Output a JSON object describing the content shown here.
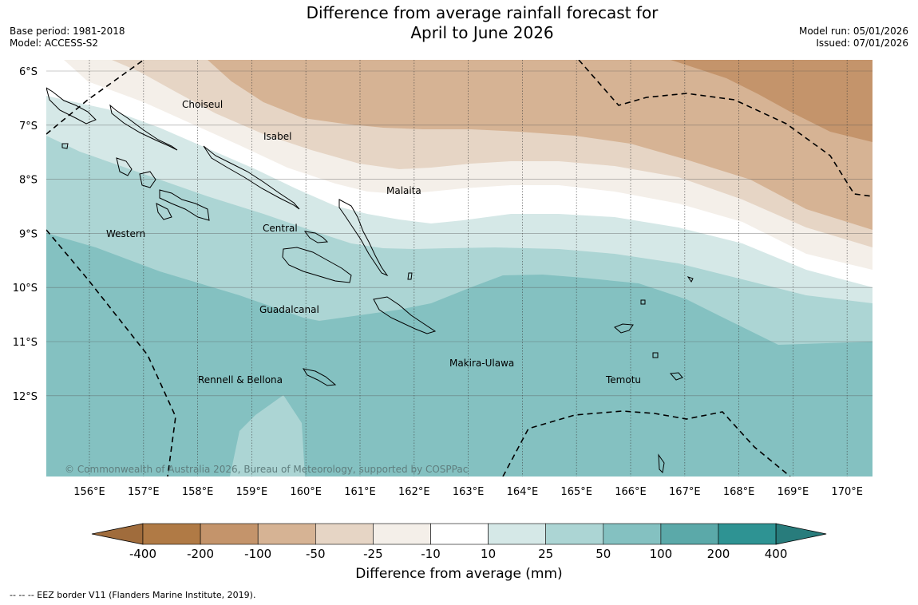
{
  "title": {
    "line1": "Difference from average rainfall forecast for",
    "line2": "April to June 2026"
  },
  "meta": {
    "base_period": "Base period: 1981-2018",
    "model": "Model: ACCESS-S2",
    "model_run": "Model run: 05/01/2026",
    "issued": "Issued: 07/01/2026"
  },
  "map": {
    "lon_ticks": [
      "156°E",
      "157°E",
      "158°E",
      "159°E",
      "160°E",
      "161°E",
      "162°E",
      "163°E",
      "164°E",
      "165°E",
      "166°E",
      "167°E",
      "168°E",
      "169°E",
      "170°E"
    ],
    "lat_ticks": [
      "6°S",
      "7°S",
      "8°S",
      "9°S",
      "10°S",
      "11°S",
      "12°S"
    ],
    "provinces": [
      {
        "name": "Choiseul"
      },
      {
        "name": "Isabel"
      },
      {
        "name": "Malaita"
      },
      {
        "name": "Western"
      },
      {
        "name": "Central"
      },
      {
        "name": "Guadalcanal"
      },
      {
        "name": "Makira-Ulawa"
      },
      {
        "name": "Temotu"
      },
      {
        "name": "Rennell & Bellona"
      }
    ],
    "copyright": "© Commonwealth of Australia 2026, Bureau of Meteorology, supported by COSPPac"
  },
  "colorbar": {
    "ticks": [
      "-400",
      "-200",
      "-100",
      "-50",
      "-25",
      "-10",
      "10",
      "25",
      "50",
      "100",
      "200",
      "400"
    ],
    "colors": [
      "#a06c3c",
      "#b07a45",
      "#c4946b",
      "#d6b394",
      "#e6d5c5",
      "#f4efe9",
      "#ffffff",
      "#d5e8e7",
      "#acd5d4",
      "#84c1c1",
      "#5ba9a9",
      "#2e9393",
      "#287c7c"
    ],
    "label": "Difference from average (mm)"
  },
  "footnote": "--  --  -- EEZ border V11 (Flanders Marine Institute, 2019)."
}
